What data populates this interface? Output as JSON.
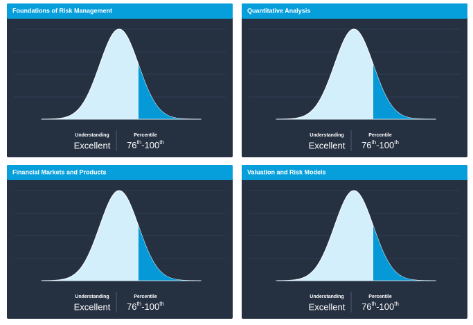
{
  "panels": [
    {
      "title": "Foundations of Risk Management",
      "understanding_label": "Understanding",
      "understanding": "Excellent",
      "percentile_label": "Percentile",
      "percentile_low": "76",
      "low_suffix": "th",
      "percentile_high": "-100",
      "high_suffix": "th"
    },
    {
      "title": "Quantitative Analysis",
      "understanding_label": "Understanding",
      "understanding": "Excellent",
      "percentile_label": "Percentile",
      "percentile_low": "76",
      "low_suffix": "th",
      "percentile_high": "-100",
      "high_suffix": "th"
    },
    {
      "title": "Financial Markets and Products",
      "understanding_label": "Understanding",
      "understanding": "Excellent",
      "percentile_label": "Percentile",
      "percentile_low": "76",
      "low_suffix": "th",
      "percentile_high": "-100",
      "high_suffix": "th"
    },
    {
      "title": "Valuation and Risk Models",
      "understanding_label": "Understanding",
      "understanding": "Excellent",
      "percentile_label": "Percentile",
      "percentile_low": "76",
      "low_suffix": "th",
      "percentile_high": "-100",
      "high_suffix": "th"
    }
  ]
}
